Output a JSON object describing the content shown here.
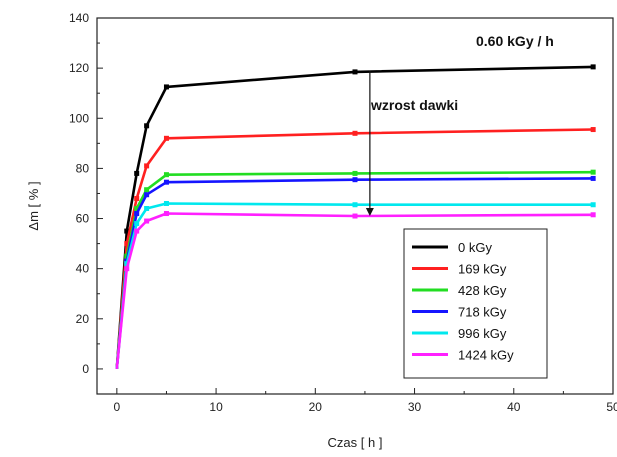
{
  "chart_data": {
    "type": "line",
    "title": "",
    "xlabel": "Czas [ h ]",
    "ylabel": "Δm [ % ]",
    "xlim": [
      -2,
      50
    ],
    "ylim": [
      -10,
      140
    ],
    "xticks": [
      0,
      10,
      20,
      30,
      40,
      50
    ],
    "yticks": [
      0,
      20,
      40,
      60,
      80,
      100,
      120,
      140
    ],
    "grid": false,
    "legend_position": "bottom-right",
    "annotations": {
      "dose_rate": "0.60 kGy / h",
      "arrow_label": "wzrost dawki",
      "arrow_x": 25.5,
      "arrow_from_y": 119,
      "arrow_to_y": 61
    },
    "series": [
      {
        "name": "0 kGy",
        "color": "#000000",
        "x": [
          0,
          1,
          2,
          3,
          5,
          24,
          48
        ],
        "y": [
          0,
          55,
          78,
          97,
          112.5,
          118.5,
          120.5
        ]
      },
      {
        "name": "169 kGy",
        "color": "#ff2020",
        "x": [
          0,
          1,
          2,
          3,
          5,
          24,
          48
        ],
        "y": [
          0,
          50,
          68,
          81,
          92,
          94,
          95.5
        ]
      },
      {
        "name": "428 kGy",
        "color": "#22dd22",
        "x": [
          0,
          1,
          2,
          3,
          5,
          24,
          48
        ],
        "y": [
          0,
          45,
          64,
          71.5,
          77.5,
          78,
          78.5
        ]
      },
      {
        "name": "718 kGy",
        "color": "#1515ff",
        "x": [
          0,
          1,
          2,
          3,
          5,
          24,
          48
        ],
        "y": [
          0,
          43,
          62,
          69.5,
          74.5,
          75.5,
          76
        ]
      },
      {
        "name": "996 kGy",
        "color": "#00e8ee",
        "x": [
          0,
          1,
          2,
          3,
          5,
          24,
          48
        ],
        "y": [
          0,
          42,
          58,
          64,
          66,
          65.5,
          65.5
        ]
      },
      {
        "name": "1424 kGy",
        "color": "#ff20ff",
        "x": [
          0,
          1,
          2,
          3,
          5,
          24,
          48
        ],
        "y": [
          0,
          40,
          55,
          59,
          62,
          61,
          61.5
        ]
      }
    ]
  }
}
